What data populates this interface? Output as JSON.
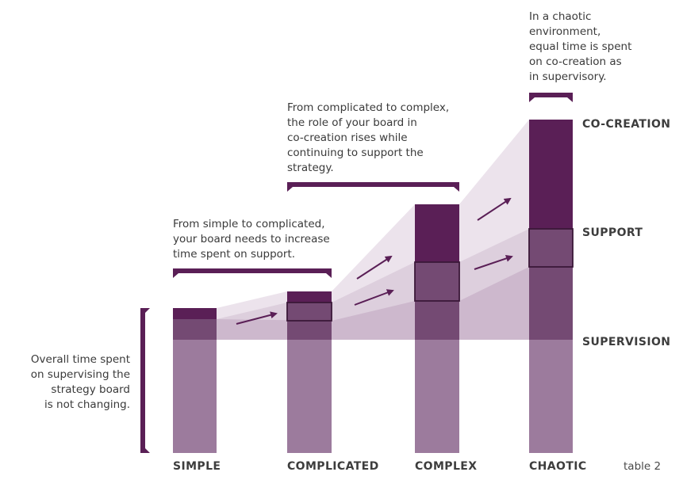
{
  "categories": [
    "SIMPLE",
    "COMPLICATED",
    "COMPLEX",
    "CHAOTIC"
  ],
  "layers": [
    "SUPERVISION",
    "SUPPORT",
    "CO-CREATION"
  ],
  "annotations": {
    "simple_to_complicated": [
      "From simple to complicated,",
      "your board needs to increase",
      "time spent on support."
    ],
    "complicated_to_complex": [
      "From complicated to complex,",
      "the role of your board in",
      "co-creation rises while",
      "continuing to support the",
      "strategy."
    ],
    "chaotic": [
      "In a chaotic",
      "environment,",
      "equal time is spent",
      "on co-creation as",
      "in supervisory."
    ],
    "supervision_note": [
      "Overall time spent",
      "on supervising the",
      "strategy board",
      "is not changing."
    ]
  },
  "caption": "table 2",
  "colors": {
    "supervision": "#9c7b9d",
    "support": "#744a73",
    "cocreation": "#5a1f56",
    "band": "#ece3ec",
    "bracket": "#5a1f56"
  }
}
